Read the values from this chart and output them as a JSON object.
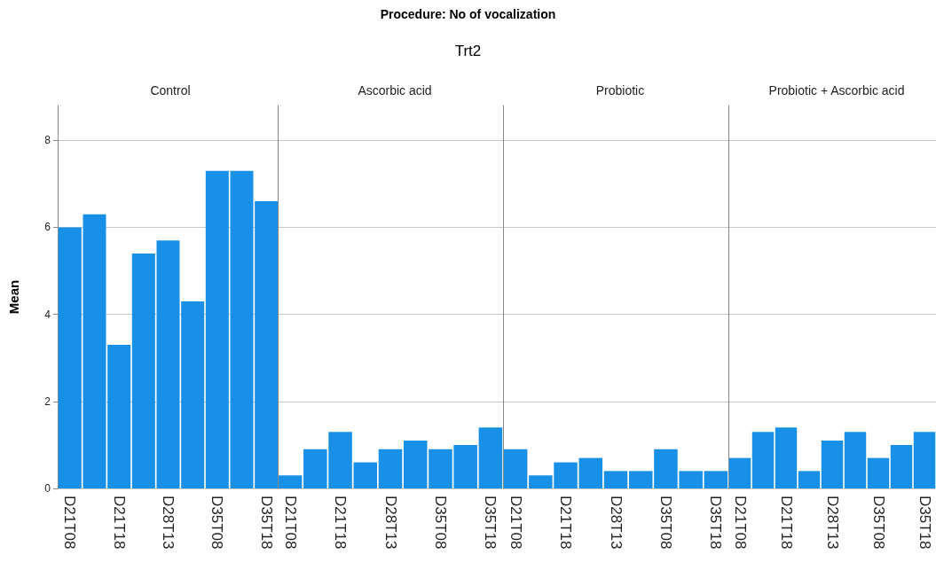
{
  "chart_data": [
    {
      "type": "bar",
      "title": "Control",
      "ylabel": "Mean",
      "annotations": [
        "Procedure: No of vocalization",
        "Trt2"
      ],
      "categories": [
        "D21T08",
        null,
        "D21T18",
        null,
        "D28T13",
        null,
        "D35T08",
        null,
        "D35T18"
      ],
      "values": [
        6.0,
        6.3,
        3.3,
        5.4,
        5.7,
        4.3,
        7.3,
        7.3,
        6.6
      ],
      "color": "#1890e8",
      "ylim": [
        0,
        8.8
      ],
      "yticks": [
        0,
        2,
        4,
        6,
        8
      ],
      "grid": "y"
    },
    {
      "type": "bar",
      "title": "Ascorbic acid",
      "categories": [
        "D21T08",
        null,
        "D21T18",
        null,
        "D28T13",
        null,
        "D35T08",
        null,
        "D35T18"
      ],
      "values": [
        0.3,
        0.9,
        1.3,
        0.6,
        0.9,
        1.1,
        0.9,
        1.0,
        1.4
      ],
      "color": "#1890e8",
      "ylim": [
        0,
        8.8
      ],
      "yticks": [
        0,
        2,
        4,
        6,
        8
      ],
      "grid": "y",
      "tick_labels": "x"
    },
    {
      "type": "bar",
      "title": "Probiotic",
      "categories": [
        "D21T08",
        null,
        "D21T18",
        null,
        "D28T13",
        null,
        "D35T08",
        null,
        "D35T18"
      ],
      "values": [
        0.9,
        0.3,
        0.6,
        0.7,
        0.4,
        0.4,
        0.9,
        0.4,
        0.4
      ],
      "color": "#1890e8",
      "ylim": [
        0,
        8.8
      ],
      "yticks": [
        0,
        2,
        4,
        6,
        8
      ],
      "grid": "y",
      "tick_labels": "x"
    },
    {
      "type": "bar",
      "title": "Probiotic + Ascorbic acid",
      "categories": [
        "D21T08",
        null,
        "D21T18",
        null,
        "D28T13",
        null,
        "D35T08",
        null,
        "D35T18"
      ],
      "values": [
        0.7,
        1.3,
        1.4,
        0.4,
        1.1,
        1.3,
        0.7,
        1.0,
        1.3
      ],
      "color": "#1890e8",
      "ylim": [
        0,
        8.8
      ],
      "yticks": [
        0,
        2,
        4,
        6,
        8
      ],
      "grid": "y",
      "tick_labels": "x"
    }
  ]
}
